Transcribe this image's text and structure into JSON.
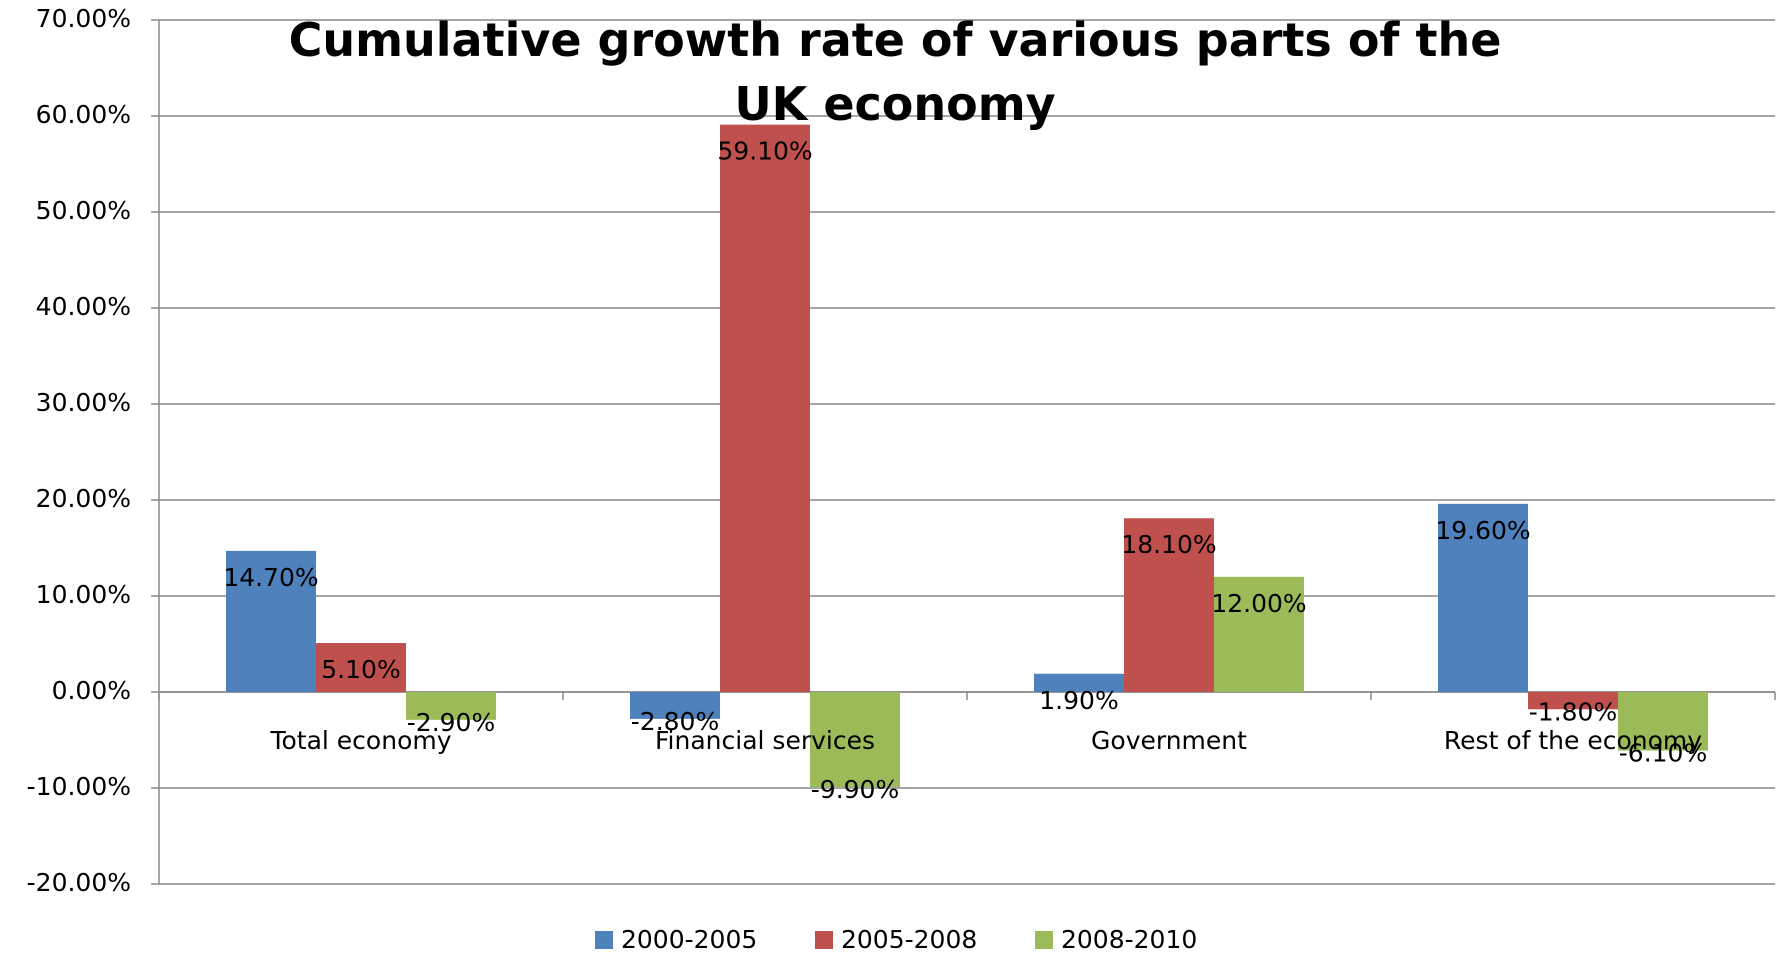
{
  "chart_data": {
    "type": "bar",
    "title": "Cumulative growth rate of various parts of the UK economy",
    "categories": [
      "Total economy",
      "Financial services",
      "Government",
      "Rest of the economy"
    ],
    "series": [
      {
        "name": "2000-2005",
        "color": "#4f81bd",
        "values": [
          14.7,
          -2.8,
          1.9,
          19.6
        ],
        "value_labels": [
          "14.70%",
          "-2.80%",
          "1.90%",
          "19.60%"
        ]
      },
      {
        "name": "2005-2008",
        "color": "#c0504d",
        "values": [
          5.1,
          59.1,
          18.1,
          -1.8
        ],
        "value_labels": [
          "5.10%",
          "59.10%",
          "18.10%",
          "-1.80%"
        ]
      },
      {
        "name": "2008-2010",
        "color": "#9bbb59",
        "values": [
          -2.9,
          -9.9,
          12.0,
          -6.1
        ],
        "value_labels": [
          "-2.90%",
          "-9.90%",
          "12.00%",
          "-6.10%"
        ]
      }
    ],
    "ylim": [
      -20,
      70
    ],
    "yticks": [
      {
        "value": -20,
        "label": "-20.00%"
      },
      {
        "value": -10,
        "label": "-10.00%"
      },
      {
        "value": 0,
        "label": "0.00%"
      },
      {
        "value": 10,
        "label": "10.00%"
      },
      {
        "value": 20,
        "label": "20.00%"
      },
      {
        "value": 30,
        "label": "30.00%"
      },
      {
        "value": 40,
        "label": "40.00%"
      },
      {
        "value": 50,
        "label": "50.00%"
      },
      {
        "value": 60,
        "label": "60.00%"
      },
      {
        "value": 70,
        "label": "70.00%"
      }
    ],
    "grid": true
  }
}
